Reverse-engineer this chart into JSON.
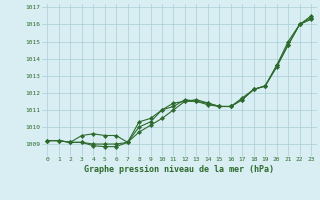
{
  "line1": [
    1009.2,
    1009.2,
    1009.1,
    1009.5,
    1009.6,
    1009.5,
    1009.5,
    1009.1,
    1010.3,
    1010.5,
    1011.0,
    1011.4,
    1011.5,
    1011.5,
    1011.3,
    1011.2,
    1011.2,
    1011.6,
    1012.2,
    1012.4,
    1013.6,
    1015.0,
    1016.0,
    1016.3
  ],
  "line2": [
    1009.2,
    1009.2,
    1009.1,
    1009.1,
    1009.0,
    1009.0,
    1009.0,
    1009.1,
    1010.0,
    1010.3,
    1011.0,
    1011.2,
    1011.6,
    1011.5,
    1011.4,
    1011.2,
    1011.2,
    1011.7,
    1012.2,
    1012.4,
    1013.6,
    1014.8,
    1016.0,
    1016.4
  ],
  "line3": [
    1009.2,
    1009.2,
    1009.1,
    1009.1,
    1008.9,
    1008.85,
    1008.85,
    1009.1,
    1009.7,
    1010.1,
    1010.5,
    1011.0,
    1011.5,
    1011.6,
    1011.4,
    1011.2,
    1011.2,
    1011.6,
    1012.2,
    1012.4,
    1013.5,
    1014.8,
    1016.0,
    1016.5
  ],
  "x": [
    0,
    1,
    2,
    3,
    4,
    5,
    6,
    7,
    8,
    9,
    10,
    11,
    12,
    13,
    14,
    15,
    16,
    17,
    18,
    19,
    20,
    21,
    22,
    23
  ],
  "yticks": [
    1009,
    1010,
    1011,
    1012,
    1013,
    1014,
    1015,
    1016,
    1017
  ],
  "ylim": [
    1008.3,
    1017.2
  ],
  "xlim": [
    -0.5,
    23.5
  ],
  "xlabel": "Graphe pression niveau de la mer (hPa)",
  "line_color": "#2d6a2d",
  "bg_color": "#d9eef2",
  "grid_color": "#aaccd4",
  "marker": "D",
  "marker_size": 2.2,
  "linewidth": 0.8
}
